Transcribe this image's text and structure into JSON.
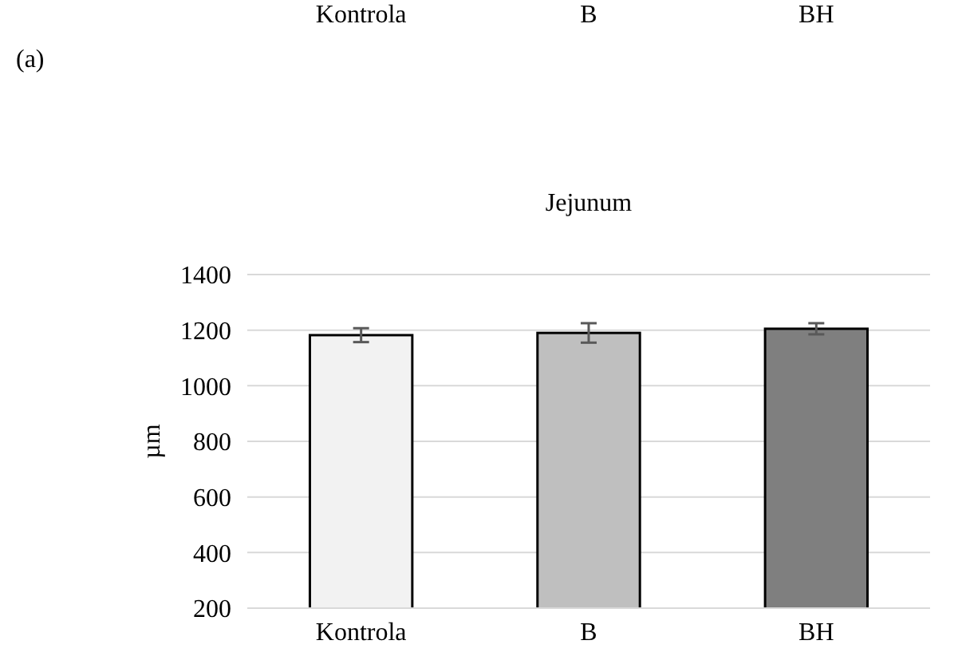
{
  "chart_data": {
    "type": "bar",
    "title": "Jejunum",
    "ylabel": "µm",
    "categories": [
      "Kontrola",
      "B",
      "BH"
    ],
    "values": [
      1182,
      1190,
      1205
    ],
    "colors": [
      "#f2f2f2",
      "#bfbfbf",
      "#7f7f7f"
    ],
    "errors": [
      25,
      35,
      20
    ],
    "ylim": [
      200,
      1400
    ],
    "yticks": [
      200,
      400,
      600,
      800,
      1000,
      1200,
      1400
    ],
    "grid": "y",
    "annotations": [
      "Kontrola",
      "B",
      "BH",
      "(a)"
    ]
  }
}
